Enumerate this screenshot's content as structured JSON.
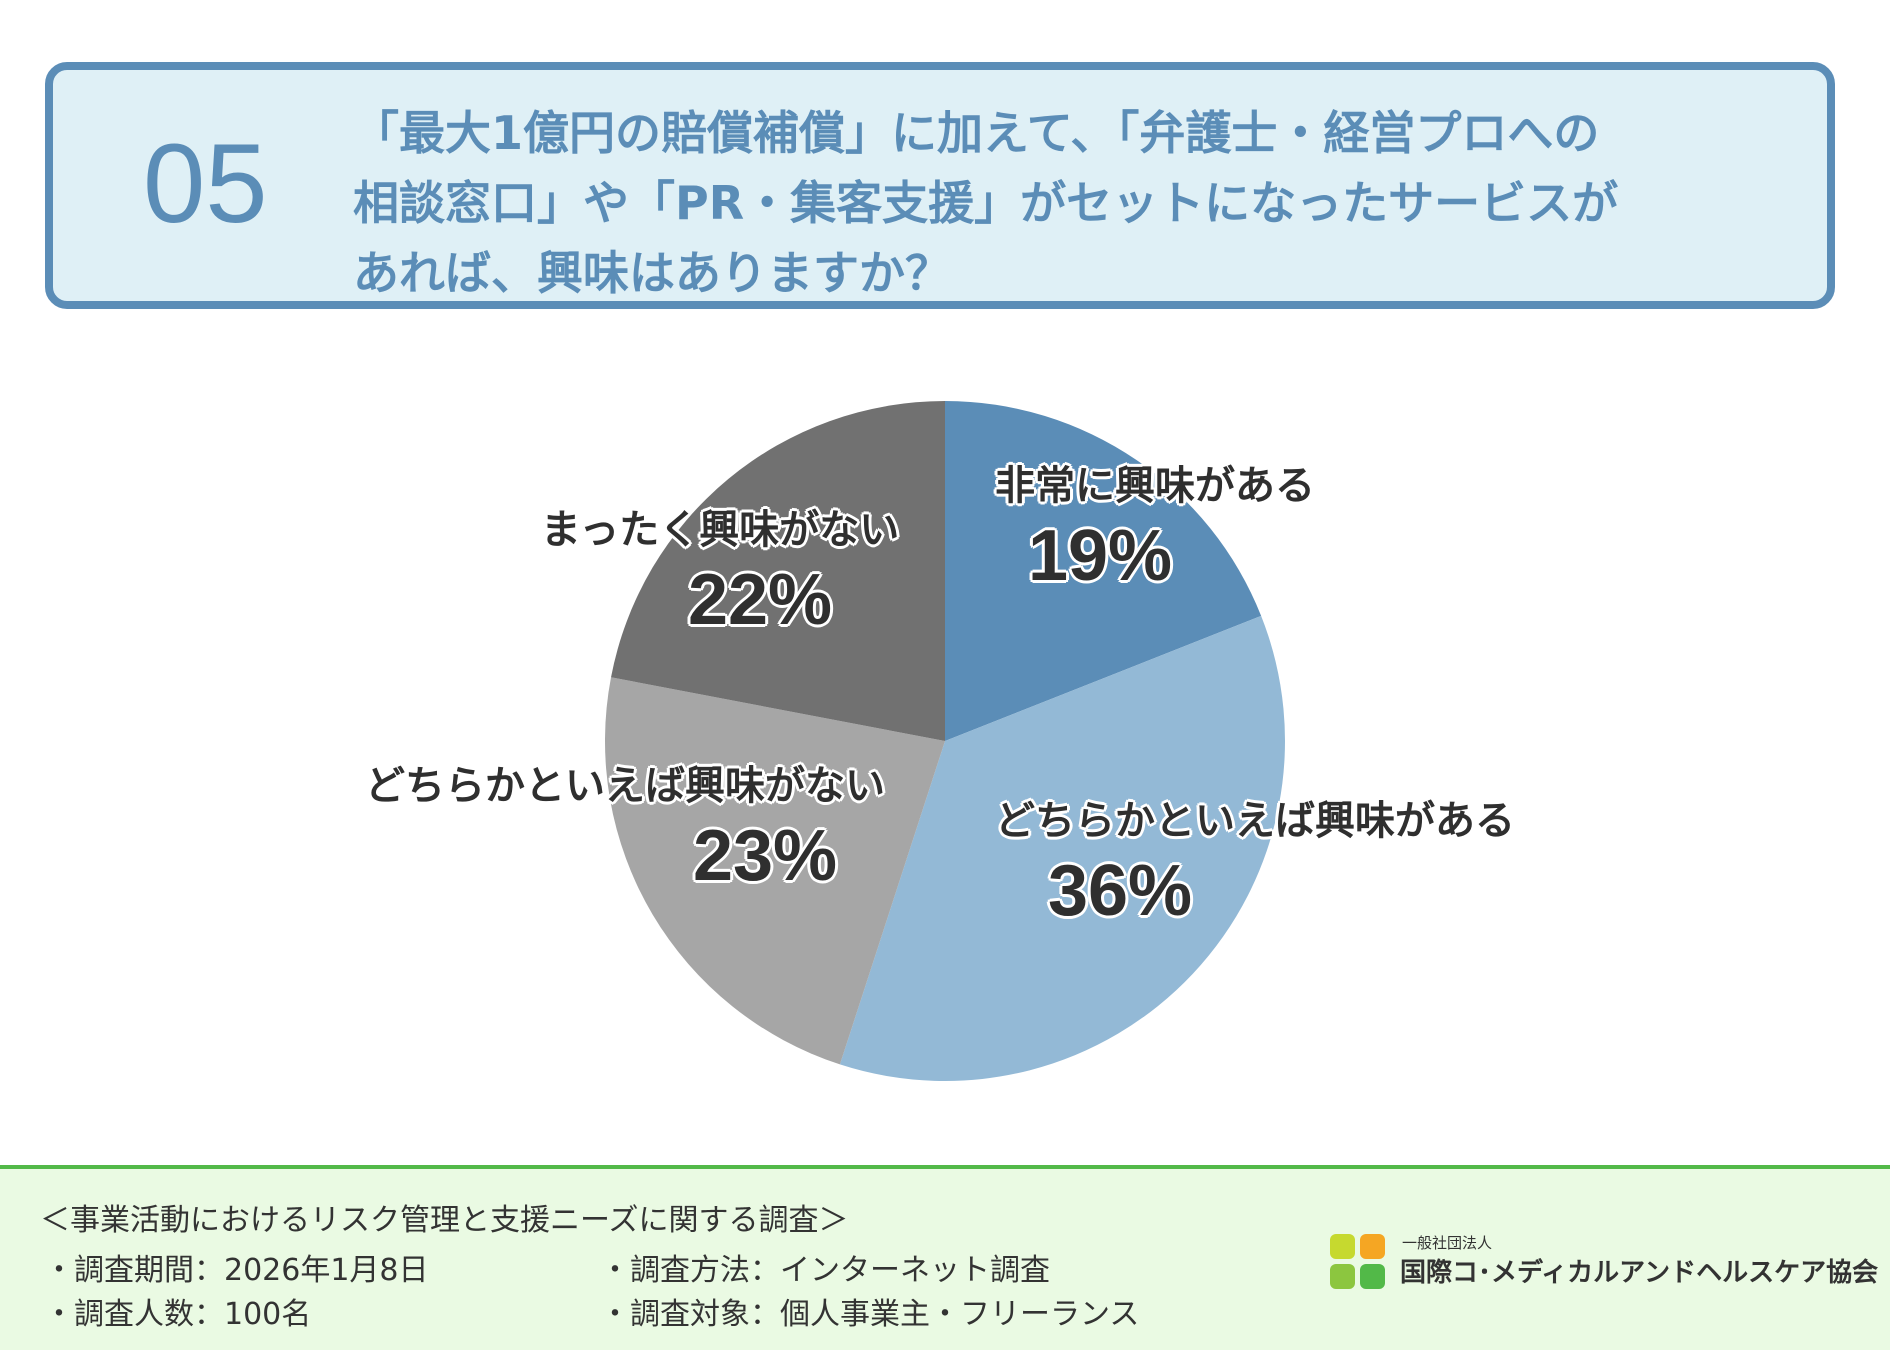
{
  "question": {
    "number": "05",
    "lines": [
      "「最大1億円の賠償補償」に加えて、「弁護士・経営プロへの",
      "相談窓口」や「PR・集客支援」がセットになったサービスが",
      "あれば、興味はありますか？"
    ]
  },
  "colors": {
    "accent": "#5b8db7",
    "box_bg": "#dff0f6",
    "footer_bg": "#eafae3",
    "footer_line": "#52b948"
  },
  "chart_data": {
    "type": "pie",
    "unit": "%",
    "start_angle_deg": 0,
    "direction": "clockwise",
    "slices": [
      {
        "label": "非常に興味がある",
        "value": 19,
        "display": "19%",
        "color": "#5b8db7"
      },
      {
        "label": "どちらかといえば興味がある",
        "value": 36,
        "display": "36%",
        "color": "#93b9d6"
      },
      {
        "label": "どちらかといえば興味がない",
        "value": 23,
        "display": "23%",
        "color": "#a6a6a6"
      },
      {
        "label": "まったく興味がない",
        "value": 22,
        "display": "22%",
        "color": "#717171"
      }
    ]
  },
  "footer": {
    "survey_title": "＜事業活動におけるリスク管理と支援ニーズに関する調査＞",
    "period": "・調査期間：2026年1月8日",
    "method": "・調査方法：インターネット調査",
    "respondents": "・調査人数：100名",
    "target": "・調査対象：個人事業主・フリーランス"
  },
  "logo": {
    "org_type": "一般社団法人",
    "org_name": "国際コ･メディカルアンドヘルスケア協会",
    "mark_colors": [
      "#f5a623",
      "#8cc63f",
      "#52b948",
      "#c6d92f"
    ]
  }
}
